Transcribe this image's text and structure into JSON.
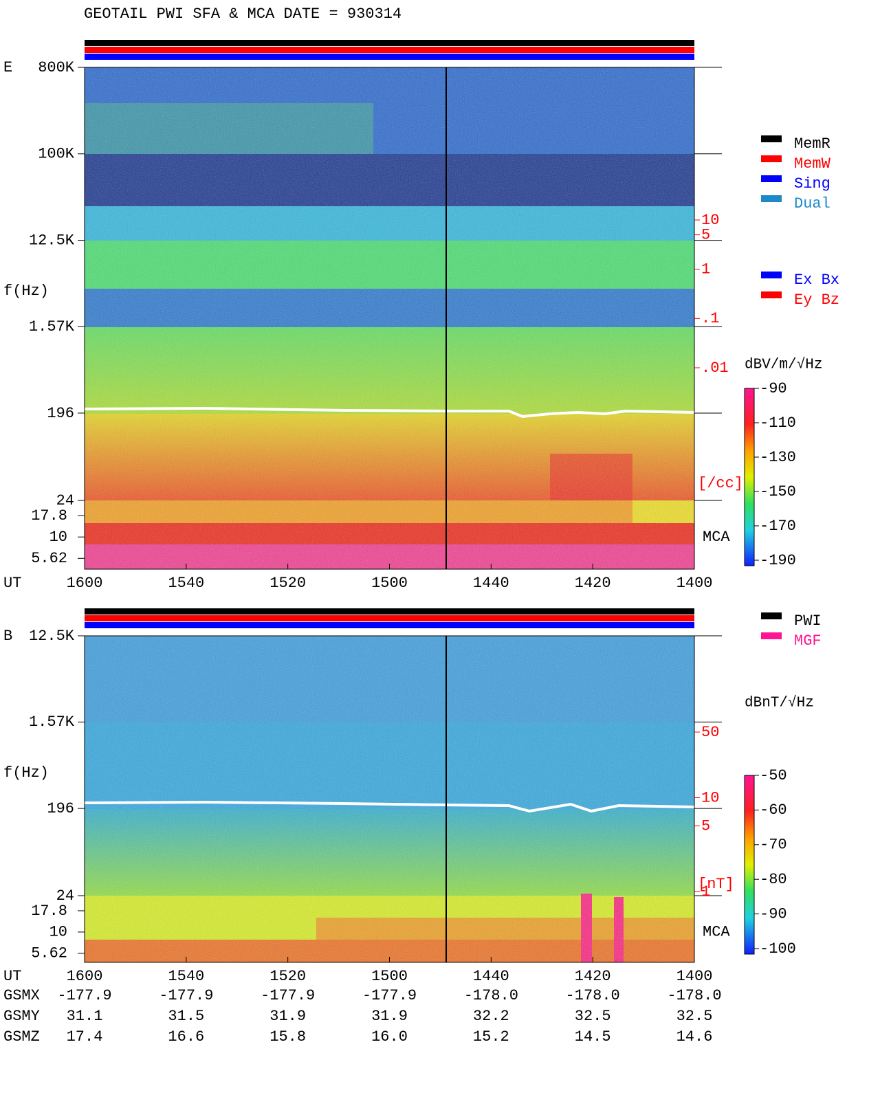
{
  "chart_data": [
    {
      "type": "spectrogram",
      "title": "GEOTAIL  PWI SFA & MCA   DATE = 930314",
      "panel_label": "E",
      "ylabel": "f(Hz)",
      "xlabel": "UT",
      "log": true,
      "ylim": [
        24,
        800000
      ],
      "yticks": [
        {
          "value": 800000,
          "label": "800K"
        },
        {
          "value": 100000,
          "label": "100K"
        },
        {
          "value": 12500,
          "label": "12.5K"
        },
        {
          "value": 1570,
          "label": "1.57K"
        },
        196,
        24
      ],
      "mca_label": "MCA",
      "mca_lim": [
        4.2,
        26.8
      ],
      "mca_ticks": [
        17.8,
        10,
        5.62
      ],
      "xlim": [
        0,
        120
      ],
      "xticks": [
        {
          "value": 0,
          "label": "1400"
        },
        {
          "value": 20,
          "label": "1420"
        },
        {
          "value": 40,
          "label": "1440"
        },
        {
          "value": 60,
          "label": "1500"
        },
        {
          "value": 80,
          "label": "1520"
        },
        {
          "value": 100,
          "label": "1540"
        },
        {
          "value": 120,
          "label": "1600"
        }
      ],
      "clabel": "dBV/m/√Hz",
      "clim": [
        -190,
        -90
      ],
      "cticks": [
        -90,
        -110,
        -130,
        -150,
        -170,
        -190
      ],
      "aux_lim": [
        0.01,
        10
      ],
      "aux_ticks": [
        10,
        5,
        1,
        {
          "value": 0.1,
          "label": ".1"
        },
        {
          "value": 0.01,
          "label": ".01"
        }
      ],
      "aux_unit": "[/cc]",
      "legend": [
        {
          "name": "MemR",
          "color": "#000000"
        },
        {
          "name": "MemW",
          "color": "#ff0000"
        },
        {
          "name": "Sing",
          "color": "#0000ff"
        },
        {
          "name": "Dual",
          "color": "#1e88c8"
        }
      ],
      "legend2": [
        {
          "name": "Ex Bx",
          "color": "#0000ff"
        },
        {
          "name": "Ey Bz",
          "color": "#ff0000"
        }
      ]
    },
    {
      "type": "spectrogram",
      "panel_label": "B",
      "ylabel": "f(Hz)",
      "xlabel": "UT",
      "log": true,
      "ylim": [
        24,
        12500
      ],
      "yticks": [
        {
          "value": 12500,
          "label": "12.5K"
        },
        {
          "value": 1570,
          "label": "1.57K"
        },
        196,
        24
      ],
      "mca_label": "MCA",
      "mca_lim": [
        4.4,
        26.8
      ],
      "mca_ticks": [
        17.8,
        10,
        5.62
      ],
      "xlim": [
        0,
        120
      ],
      "xticks": [
        {
          "value": 0,
          "label": "1400"
        },
        {
          "value": 20,
          "label": "1420"
        },
        {
          "value": 40,
          "label": "1440"
        },
        {
          "value": 60,
          "label": "1500"
        },
        {
          "value": 80,
          "label": "1520"
        },
        {
          "value": 100,
          "label": "1540"
        },
        {
          "value": 120,
          "label": "1600"
        }
      ],
      "clabel": "dBnT/√Hz",
      "clim": [
        -100,
        -50
      ],
      "cticks": [
        -50,
        -60,
        -70,
        -80,
        -90,
        -100
      ],
      "aux_lim": [
        1,
        50
      ],
      "aux_ticks": [
        50,
        10,
        5,
        1
      ],
      "aux_unit": "[nT]",
      "legend": [
        {
          "name": "PWI",
          "color": "#000000"
        },
        {
          "name": "MGF",
          "color": "#ff1493"
        }
      ],
      "orbit": {
        "labels": [
          "GSMX",
          "GSMY",
          "GSMZ"
        ],
        "rows": [
          [
            "-178.0",
            "-178.0",
            "-178.0",
            "-177.9",
            "-177.9",
            "-177.9",
            "-177.9"
          ],
          [
            "32.5",
            "32.5",
            "32.2",
            "31.9",
            "31.9",
            "31.5",
            "31.1"
          ],
          [
            "14.6",
            "14.5",
            "15.2",
            "16.0",
            "15.8",
            "16.6",
            "17.4"
          ]
        ]
      }
    }
  ]
}
